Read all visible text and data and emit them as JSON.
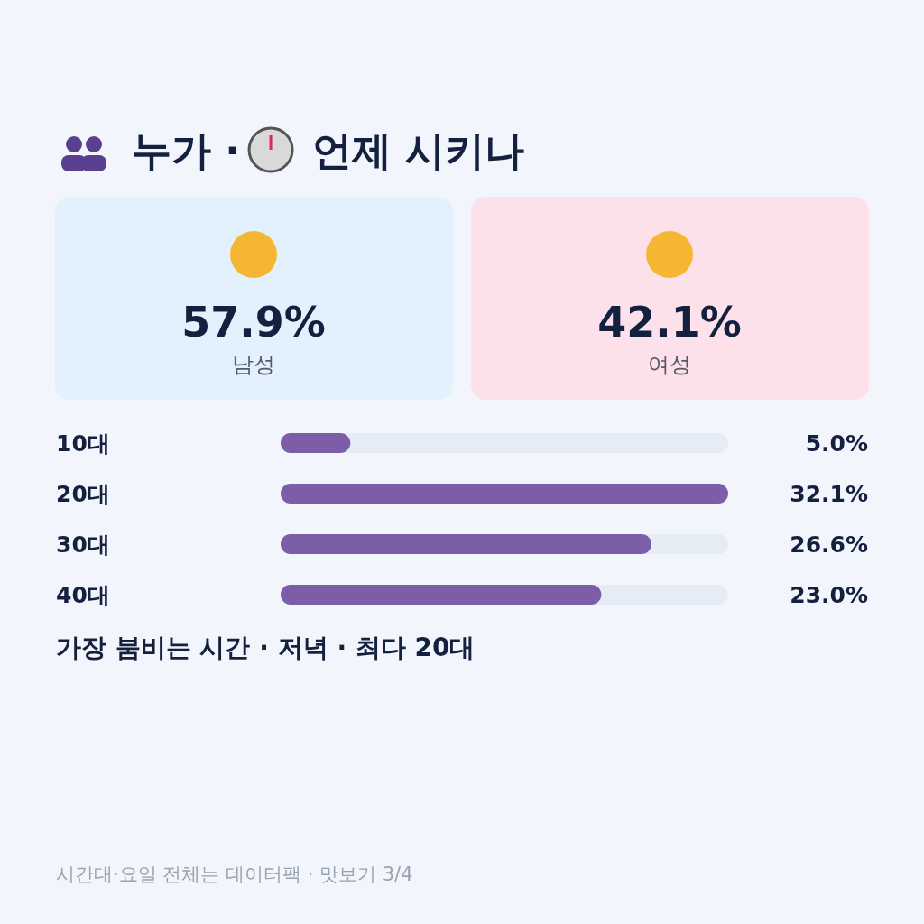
{
  "chart_data": [
    {
      "type": "other",
      "title": "누가 · 언제 시키나",
      "categories": [
        "남성",
        "여성"
      ],
      "values": [
        57.9,
        42.1
      ],
      "value_labels": [
        "57.9%",
        "42.1%"
      ],
      "colors": [
        "#e3f1fc",
        "#fde1ea"
      ]
    },
    {
      "type": "bar",
      "orientation": "horizontal",
      "categories": [
        "10대",
        "20대",
        "30대",
        "40대"
      ],
      "values": [
        5.0,
        32.1,
        26.6,
        23.0
      ],
      "value_labels": [
        "5.0%",
        "32.1%",
        "26.6%",
        "23.0%"
      ],
      "color": "#7b5ea7",
      "xlim": [
        0,
        32.1
      ],
      "annotations": [
        "가장 붐비는 시간 · 저녁 · 최다 20대",
        "시간대·요일 전체는 데이터팩 · 맛보기 3/4"
      ]
    }
  ]
}
